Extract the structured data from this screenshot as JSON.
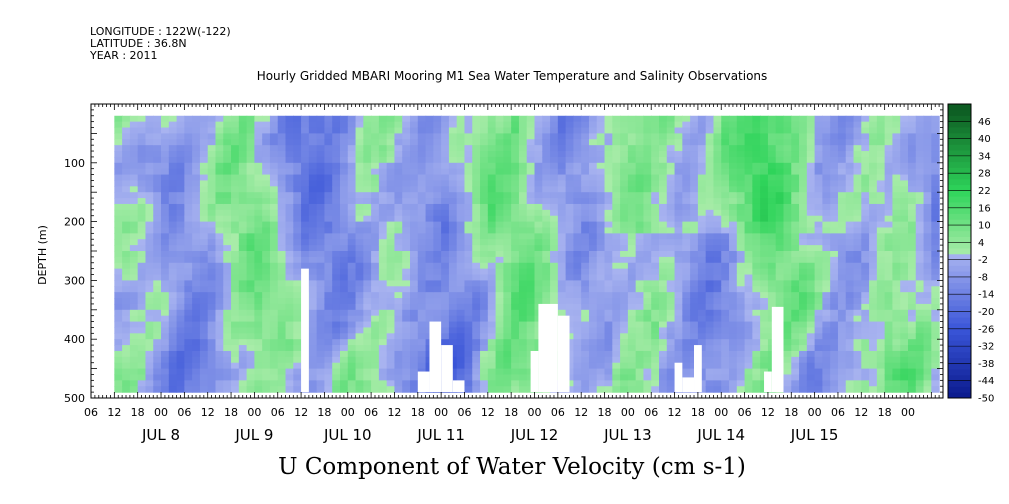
{
  "meta": {
    "longitude": "LONGITUDE : 122W(-122)",
    "latitude": "LATITUDE : 36.8N",
    "year": "YEAR : 2011"
  },
  "chart_data": {
    "type": "heatmap",
    "title": "Hourly Gridded MBARI Mooring M1 Sea Water Temperature and Salinity Observations",
    "xlabel": "U Component of Water Velocity (cm s-1)",
    "ylabel": "DEPTH (m)",
    "x_range_hours": [
      0,
      219
    ],
    "x_start": "JUL 8 06:00",
    "x_hour_ticks": [
      "06",
      "12",
      "18",
      "00",
      "06",
      "12",
      "18",
      "00",
      "06",
      "12",
      "18",
      "00",
      "06",
      "12",
      "18",
      "00",
      "06",
      "12",
      "18",
      "00",
      "06",
      "12",
      "18",
      "00",
      "06",
      "12",
      "18",
      "00",
      "06",
      "12",
      "18",
      "00",
      "06",
      "12",
      "18",
      "00"
    ],
    "x_day_labels": [
      "JUL 8",
      "JUL 9",
      "JUL 10",
      "JUL 11",
      "JUL 12",
      "JUL 13",
      "JUL 14",
      "JUL 15"
    ],
    "y_range": [
      500,
      0
    ],
    "y_ticks": [
      100,
      200,
      300,
      400,
      500
    ],
    "y_tick_labels": [
      "100",
      "200",
      "300",
      "400",
      "500"
    ],
    "colorbar_levels": [
      -50,
      -44,
      -38,
      -32,
      -26,
      -20,
      -14,
      -8,
      -2,
      4,
      10,
      16,
      22,
      28,
      34,
      40,
      46
    ],
    "colorbar_labels": [
      "-50",
      "-44",
      "-38",
      "-32",
      "-26",
      "-20",
      "-14",
      "-8",
      "-2",
      "4",
      "10",
      "16",
      "22",
      "28",
      "34",
      "40",
      "46"
    ],
    "colorbar_range": [
      -50,
      52
    ],
    "colors": {
      "neg_strong": "#0a1a8c",
      "neg_mid": "#3a55d8",
      "neg_light": "#a9b4f0",
      "pos_light": "#a9eca9",
      "pos_mid": "#2ed45a",
      "pos_strong": "#0d5c22"
    }
  }
}
